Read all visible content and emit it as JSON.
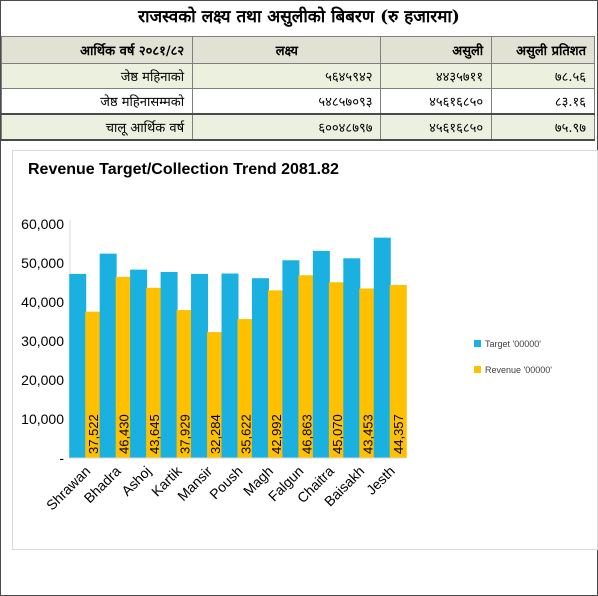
{
  "title": "राजस्वको लक्ष्य तथा असुलीको बिबरण (रु हजारमा)",
  "table": {
    "headers": [
      "आर्थिक वर्ष २०८१/८२",
      "लक्ष्य",
      "असुली",
      "असुली प्रतिशत"
    ],
    "rows": [
      [
        "जेष्ठ महिनाको",
        "५६४५९४२",
        "४४३५७११",
        "७८.५६"
      ],
      [
        "जेष्ठ महिनासम्मको",
        "५४८५७०९३",
        "४५६१६८५०",
        "८३.१६"
      ],
      [
        "चालू आर्थिक वर्ष",
        "६००४८७९७",
        "४५६१६८५०",
        "७५.९७"
      ]
    ]
  },
  "colors": {
    "target": "#1ab0e0",
    "revenue": "#ffc000",
    "header_bg": "#e2e2d4",
    "row_bg": "#ebf1de"
  },
  "chart_data": {
    "type": "bar",
    "title": "Revenue Target/Collection Trend 2081.82",
    "categories": [
      "Shrawan",
      "Bhadra",
      "Ashoj",
      "Kartik",
      "Mansir",
      "Poush",
      "Magh",
      "Falgun",
      "Chaitra",
      "Baisakh",
      "Jesth"
    ],
    "series": [
      {
        "name": "Target '00000'",
        "values": [
          47200,
          52400,
          48300,
          47700,
          47200,
          47300,
          46100,
          50700,
          53100,
          51200,
          56500
        ]
      },
      {
        "name": "Revenue '00000'",
        "values": [
          37522,
          46430,
          43645,
          37929,
          32284,
          35622,
          42992,
          46863,
          45070,
          43453,
          44357
        ]
      }
    ],
    "data_labels": [
      "37,522",
      "46,430",
      "43,645",
      "37,929",
      "32,284",
      "35,622",
      "42,992",
      "46,863",
      "45,070",
      "43,453",
      "44,357"
    ],
    "yticks": [
      "-",
      "10,000",
      "20,000",
      "30,000",
      "40,000",
      "50,000",
      "60,000"
    ],
    "ylim": [
      0,
      60000
    ],
    "xlabel": "",
    "ylabel": "",
    "legend_position": "right",
    "grid": false
  }
}
